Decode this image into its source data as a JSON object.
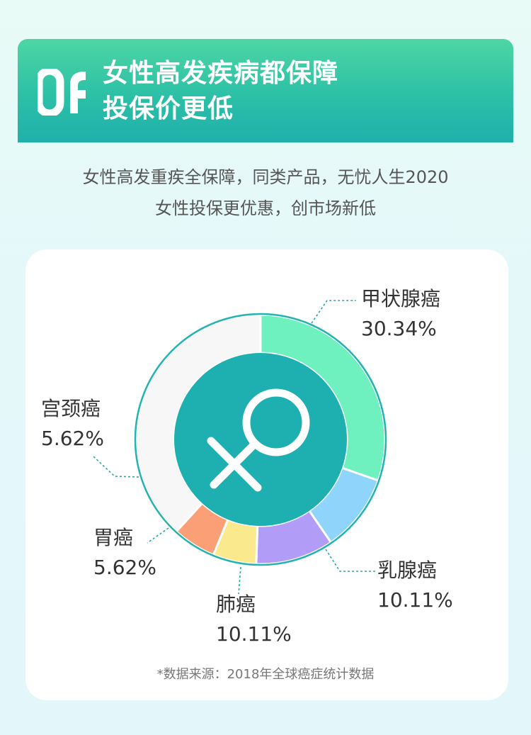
{
  "banner": {
    "number": "06",
    "title_line1": "女性高发疾病都保障",
    "title_line2": "投保价更低"
  },
  "description": {
    "line1": "女性高发重疾全保障，同类产品，无忧人生2020",
    "line2": "女性投保更优惠，创市场新低"
  },
  "chart_data": {
    "type": "pie",
    "title": "",
    "center_icon": "female-symbol-icon",
    "slices": [
      {
        "label": "甲状腺癌",
        "value": 30.34,
        "value_label": "30.34%",
        "color": "#6ef0bf"
      },
      {
        "label": "乳腺癌",
        "value": 10.11,
        "value_label": "10.11%",
        "color": "#8fd4fb"
      },
      {
        "label": "肺癌",
        "value": 10.11,
        "value_label": "10.11%",
        "color": "#b19cf7"
      },
      {
        "label": "胃癌",
        "value": 5.62,
        "value_label": "5.62%",
        "color": "#fbe98d"
      },
      {
        "label": "宫颈癌",
        "value": 5.62,
        "value_label": "5.62%",
        "color": "#fb9f77"
      },
      {
        "label": "",
        "value": 38.2,
        "value_label": "",
        "color": "#f7f7f7"
      }
    ],
    "colors": {
      "ring_border": "#23b3b0",
      "center": "#1eb0b0",
      "leader": "#26a7a7"
    }
  },
  "footnote": "*数据来源：2018年全球癌症统计数据"
}
